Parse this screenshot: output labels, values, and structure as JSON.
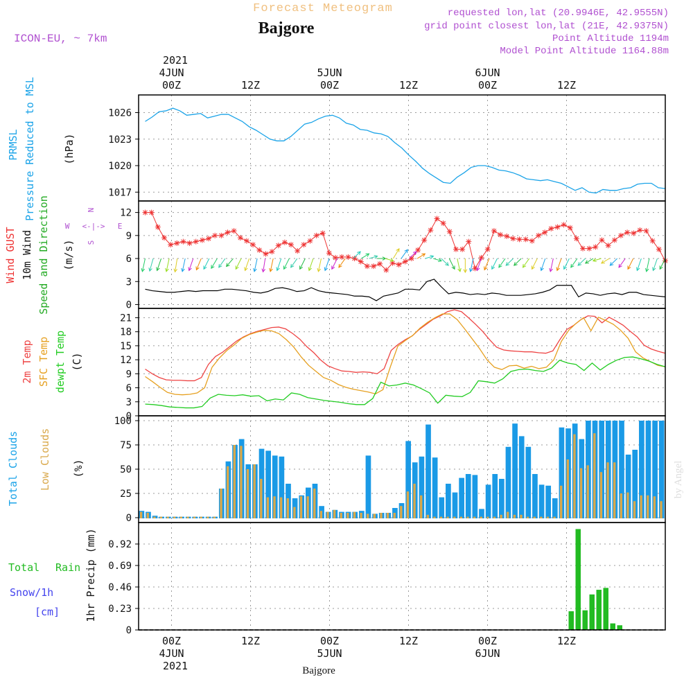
{
  "header": {
    "product": "Forecast Meteogram",
    "location": "Bajgore",
    "model": "ICON-EU, ~ 7km",
    "requested": "requested lon,lat (20.9946E, 42.9555N)",
    "grid_point": "grid point closest lon,lat (21E, 42.9375N)",
    "point_alt": "Point Altitude 1194m",
    "model_alt": "Model Point Altitude 1164.88m",
    "footer_location": "Bajgore",
    "credit": "by Angel"
  },
  "time_axis": {
    "top_year": "2021",
    "top_dates": [
      "4JUN",
      "5JUN",
      "6JUN"
    ],
    "hour_labels": [
      "00Z",
      "12Z",
      "00Z",
      "12Z",
      "00Z",
      "12Z"
    ],
    "bottom_dates": [
      "4JUN",
      "5JUN",
      "6JUN"
    ],
    "bottom_year": "2021"
  },
  "panel_labels": {
    "p1": [
      "PRMSL",
      "Pressure Reduced to MSL",
      "(hPa)"
    ],
    "p2": [
      "Wind GUST",
      "10m Wind",
      "Speed and Direction",
      "(m/s)"
    ],
    "compass": [
      "N",
      "S",
      "W",
      "E"
    ],
    "p3": [
      "2m Temp",
      "SFC Temp",
      "dewpt Temp",
      "(C)"
    ],
    "p4": [
      "Total Clouds",
      "Low Clouds",
      "(%)"
    ],
    "p5": [
      "Total",
      "Rain",
      "Snow/1h",
      "[cm]",
      "1hr Precip (mm)"
    ]
  },
  "colors": {
    "pressure": "#1aa3e8",
    "gust": "#ee3333",
    "wind": "#000000",
    "temp2m": "#ee4444",
    "sfc": "#e6a020",
    "dewpt": "#22cc22",
    "total_clouds": "#1a9ae6",
    "low_clouds": "#d9a84a",
    "rain": "#22bb22",
    "snow": "#4444ee",
    "header_purple": "#b050d0",
    "title_orange": "#f0c080"
  },
  "chart_data": [
    {
      "type": "line",
      "panel": "pressure",
      "x_range_hours": [
        0,
        75
      ],
      "ylim": [
        1016,
        1028
      ],
      "yticks": [
        1017,
        1020,
        1023,
        1026
      ],
      "series": [
        {
          "name": "PRMSL",
          "values": [
            1025.0,
            1025.5,
            1026.1,
            1026.2,
            1026.5,
            1026.2,
            1025.7,
            1025.8,
            1025.9,
            1025.4,
            1025.6,
            1025.8,
            1025.8,
            1025.4,
            1025.0,
            1024.4,
            1024.0,
            1023.5,
            1023.0,
            1022.8,
            1022.8,
            1023.3,
            1024.0,
            1024.7,
            1024.9,
            1025.3,
            1025.6,
            1025.7,
            1025.4,
            1024.8,
            1024.6,
            1024.1,
            1024.0,
            1023.7,
            1023.6,
            1023.3,
            1022.6,
            1022.0,
            1021.2,
            1020.5,
            1019.7,
            1019.1,
            1018.6,
            1018.1,
            1018.0,
            1018.7,
            1019.2,
            1019.8,
            1020.0,
            1020.0,
            1019.8,
            1019.5,
            1019.4,
            1019.2,
            1018.9,
            1018.5,
            1018.4,
            1018.3,
            1018.4,
            1018.2,
            1018.0,
            1017.6,
            1017.2,
            1017.5,
            1017.0,
            1016.9,
            1017.3,
            1017.2,
            1017.2,
            1017.4,
            1017.5,
            1017.9,
            1018.0,
            1018.0,
            1017.5,
            1017.4
          ]
        }
      ]
    },
    {
      "type": "line",
      "panel": "wind",
      "x_range_hours": [
        0,
        75
      ],
      "ylim": [
        -0.5,
        13.5
      ],
      "yticks": [
        0,
        3,
        6,
        9,
        12
      ],
      "series": [
        {
          "name": "Wind GUST",
          "values": [
            12.0,
            12.0,
            10.1,
            8.7,
            7.8,
            8.0,
            8.2,
            8.0,
            8.2,
            8.4,
            8.6,
            9.0,
            9.0,
            9.4,
            9.6,
            8.7,
            8.3,
            7.8,
            7.1,
            6.6,
            6.9,
            7.7,
            8.1,
            7.8,
            7.0,
            7.8,
            8.3,
            9.0,
            9.3,
            6.7,
            6.1,
            6.2,
            6.2,
            6.0,
            5.6,
            5.0,
            5.0,
            5.3,
            4.5,
            5.4,
            5.2,
            5.6,
            6.0,
            7.1,
            8.4,
            9.7,
            11.2,
            10.6,
            9.5,
            7.2,
            7.2,
            8.2,
            4.7,
            6.1,
            7.2,
            9.6,
            9.1,
            8.9,
            8.6,
            8.5,
            8.5,
            8.3,
            9.0,
            9.4,
            9.9,
            10.1,
            10.4,
            10.0,
            8.6,
            7.3,
            7.3,
            7.5,
            8.4,
            7.7,
            8.4,
            9.0,
            9.4,
            9.3,
            9.7,
            9.6,
            8.3,
            7.2,
            5.7
          ]
        },
        {
          "name": "10m Wind",
          "values": [
            2.0,
            1.8,
            1.7,
            1.6,
            1.6,
            1.7,
            1.8,
            1.7,
            1.8,
            1.8,
            1.8,
            2.0,
            2.0,
            1.9,
            1.8,
            1.6,
            1.5,
            1.7,
            2.1,
            2.2,
            2.0,
            1.7,
            1.8,
            2.2,
            1.8,
            1.6,
            1.5,
            1.4,
            1.3,
            1.1,
            1.1,
            1.0,
            0.5,
            1.1,
            1.3,
            1.5,
            2.0,
            2.0,
            1.9,
            3.0,
            3.3,
            2.3,
            1.4,
            1.6,
            1.5,
            1.3,
            1.4,
            1.3,
            1.5,
            1.4,
            1.2,
            1.2,
            1.2,
            1.3,
            1.4,
            1.6,
            1.9,
            2.5,
            2.5,
            2.5,
            1.0,
            1.5,
            1.4,
            1.2,
            1.4,
            1.5,
            1.3,
            1.6,
            1.6,
            1.3,
            1.2,
            1.1,
            1.0
          ]
        }
      ]
    },
    {
      "type": "line",
      "panel": "temperature",
      "x_range_hours": [
        0,
        75
      ],
      "ylim": [
        0,
        23
      ],
      "yticks": [
        0,
        3,
        6,
        9,
        12,
        15,
        18,
        21
      ],
      "series": [
        {
          "name": "2m Temp",
          "values": [
            10.0,
            9.0,
            8.2,
            7.7,
            7.6,
            7.6,
            7.5,
            7.5,
            8.2,
            11.0,
            12.7,
            13.6,
            14.8,
            16.0,
            16.9,
            17.6,
            18.1,
            18.5,
            18.9,
            19.0,
            18.6,
            17.6,
            16.4,
            14.8,
            13.5,
            11.9,
            10.7,
            10.1,
            9.6,
            9.5,
            9.3,
            9.4,
            9.3,
            9.0,
            10.1,
            14.0,
            15.3,
            16.3,
            17.1,
            18.5,
            19.6,
            20.7,
            21.4,
            22.3,
            22.7,
            22.3,
            21.0,
            19.6,
            18.1,
            16.3,
            14.7,
            14.1,
            13.9,
            13.8,
            13.7,
            13.7,
            13.5,
            13.4,
            13.9,
            16.3,
            18.5,
            19.4,
            20.6,
            21.4,
            21.3,
            19.9,
            21.1,
            20.3,
            19.4,
            18.1,
            16.9,
            15.1,
            14.3,
            13.8,
            13.4
          ]
        },
        {
          "name": "SFC Temp",
          "values": [
            8.4,
            7.3,
            6.1,
            5.0,
            4.6,
            4.5,
            4.6,
            4.9,
            6.0,
            10.4,
            12.4,
            14.0,
            15.2,
            16.6,
            17.4,
            17.9,
            18.3,
            18.2,
            17.6,
            16.3,
            14.7,
            12.6,
            10.8,
            9.5,
            8.2,
            7.6,
            6.7,
            6.1,
            5.7,
            5.4,
            5.1,
            4.7,
            5.6,
            10.5,
            14.9,
            16.1,
            17.2,
            18.8,
            20.0,
            21.0,
            21.8,
            21.8,
            20.6,
            18.6,
            16.5,
            14.4,
            12.0,
            10.4,
            9.9,
            10.7,
            10.8,
            10.2,
            10.6,
            10.1,
            10.4,
            12.0,
            15.9,
            18.3,
            19.8,
            21.0,
            18.2,
            21.1,
            20.4,
            19.6,
            18.3,
            16.6,
            13.7,
            12.4,
            11.6,
            10.8,
            10.5
          ]
        },
        {
          "name": "dewpt Temp",
          "values": [
            2.5,
            2.4,
            2.2,
            1.9,
            1.8,
            1.7,
            1.7,
            2.0,
            3.8,
            4.6,
            4.4,
            4.3,
            4.5,
            4.2,
            4.3,
            3.2,
            3.6,
            3.4,
            4.9,
            4.6,
            3.9,
            3.6,
            3.3,
            3.1,
            2.9,
            2.6,
            2.4,
            2.4,
            3.7,
            7.2,
            6.4,
            6.6,
            7.0,
            6.6,
            5.8,
            4.9,
            2.7,
            4.4,
            4.2,
            4.1,
            5.0,
            7.5,
            7.3,
            7.0,
            7.9,
            9.5,
            9.9,
            10.0,
            9.7,
            9.5,
            10.2,
            11.9,
            11.3,
            11.0,
            9.7,
            11.3,
            9.8,
            11.0,
            11.9,
            12.5,
            12.6,
            12.2,
            11.7,
            11.0,
            10.5
          ]
        }
      ]
    },
    {
      "type": "bar",
      "panel": "clouds",
      "x_range_hours": [
        0,
        75
      ],
      "ylim": [
        -5,
        105
      ],
      "yticks": [
        0,
        25,
        50,
        75,
        100
      ],
      "series": [
        {
          "name": "Total Clouds",
          "values": [
            7,
            6,
            2,
            1,
            1,
            1,
            1,
            1,
            1,
            1,
            1,
            1,
            30,
            58,
            75,
            81,
            55,
            55,
            71,
            69,
            64,
            63,
            35,
            20,
            23,
            31,
            35,
            12,
            6,
            8,
            6,
            6,
            6,
            7,
            64,
            4,
            5,
            5,
            10,
            15,
            79,
            57,
            63,
            96,
            62,
            21,
            35,
            26,
            41,
            45,
            44,
            9,
            34,
            45,
            40,
            73,
            97,
            84,
            73,
            45,
            34,
            33,
            20,
            93,
            92,
            97,
            81,
            100,
            100,
            100,
            100,
            100,
            100,
            65,
            70,
            100,
            100,
            100,
            100
          ]
        },
        {
          "name": "Low Clouds",
          "values": [
            6,
            5,
            1,
            1,
            1,
            1,
            1,
            1,
            1,
            1,
            1,
            1,
            30,
            53,
            75,
            74,
            50,
            55,
            40,
            21,
            22,
            21,
            20,
            11,
            22,
            22,
            30,
            7,
            6,
            8,
            5,
            5,
            6,
            5,
            4,
            4,
            5,
            5,
            5,
            12,
            27,
            35,
            23,
            3,
            1,
            1,
            1,
            1,
            1,
            1,
            1,
            1,
            1,
            1,
            3,
            6,
            3,
            3,
            1,
            1,
            1,
            1,
            1,
            33,
            60,
            86,
            51,
            54,
            87,
            47,
            57,
            57,
            25,
            26,
            17,
            23,
            23,
            22,
            17
          ]
        }
      ]
    },
    {
      "type": "bar",
      "panel": "precipitation",
      "x_range_hours": [
        0,
        75
      ],
      "ylim": [
        0,
        1.15
      ],
      "yticks": [
        0,
        0.23,
        0.46,
        0.69,
        0.92
      ],
      "series": [
        {
          "name": "1hr Precip",
          "values": [
            0,
            0,
            0,
            0,
            0,
            0,
            0,
            0,
            0,
            0,
            0,
            0,
            0,
            0,
            0,
            0,
            0,
            0,
            0,
            0,
            0,
            0,
            0,
            0,
            0,
            0,
            0,
            0,
            0,
            0,
            0,
            0,
            0,
            0,
            0,
            0,
            0,
            0,
            0,
            0,
            0,
            0,
            0,
            0,
            0,
            0,
            0,
            0,
            0,
            0,
            0,
            0,
            0,
            0,
            0,
            0,
            0,
            0,
            0,
            0,
            0,
            0,
            0.2,
            1.08,
            0.21,
            0.38,
            0.43,
            0.45,
            0.07,
            0.05,
            0,
            0,
            0,
            0,
            0,
            0
          ]
        }
      ]
    }
  ]
}
